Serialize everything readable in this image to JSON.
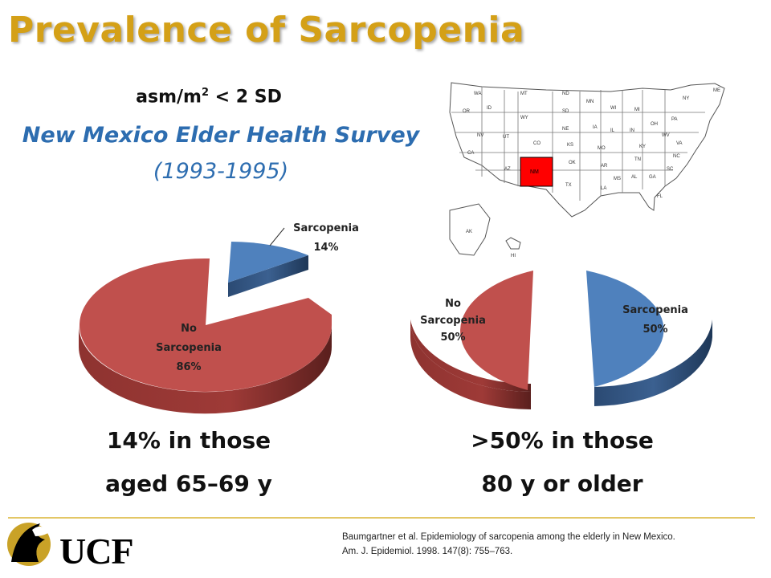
{
  "slide": {
    "title": "Prevalence of Sarcopenia",
    "criterion_prefix": "asm/m",
    "criterion_sup": "2",
    "criterion_suffix": " < 2 SD",
    "survey_name": "New Mexico Elder Health Survey",
    "survey_years": "(1993-1995)",
    "caption_left_line1": "14% in those",
    "caption_left_line2": "aged 65–69 y",
    "caption_right_line1": ">50% in those",
    "caption_right_line2": "80 y or older",
    "citation": "Baumgartner et al. Epidemiology of sarcopenia among the elderly in New Mexico. Am. J. Epidemiol. 1998. 147(8): 755–763.",
    "logo_text": "UCF"
  },
  "map": {
    "highlight_label": "NM",
    "highlight_color": "#ff0000",
    "state_labels": [
      "WA",
      "OR",
      "ID",
      "MT",
      "ND",
      "MN",
      "WI",
      "MI",
      "NY",
      "ME",
      "WY",
      "SD",
      "IA",
      "NE",
      "IL",
      "IN",
      "OH",
      "PA",
      "NV",
      "UT",
      "CO",
      "KS",
      "MO",
      "KY",
      "WV",
      "VA",
      "CA",
      "AZ",
      "OK",
      "AR",
      "TN",
      "NC",
      "SC",
      "MS",
      "AL",
      "GA",
      "TX",
      "LA",
      "FL",
      "AK",
      "HI"
    ]
  },
  "colors": {
    "title": "#d4a017",
    "survey": "#2d6db0",
    "sarcopenia": "#4f81bd",
    "no_sarcopenia": "#c0504d"
  },
  "chart_data": [
    {
      "type": "pie",
      "title": "",
      "labels": [
        "Sarcopenia",
        "No Sarcopenia"
      ],
      "values": [
        14,
        86
      ],
      "data_labels": [
        "14%",
        "86%"
      ],
      "exploded": "Sarcopenia"
    },
    {
      "type": "pie",
      "title": "",
      "labels": [
        "No Sarcopenia",
        "Sarcopenia"
      ],
      "values": [
        50,
        50
      ],
      "data_labels": [
        "50%",
        "50%"
      ],
      "exploded": "both"
    }
  ]
}
